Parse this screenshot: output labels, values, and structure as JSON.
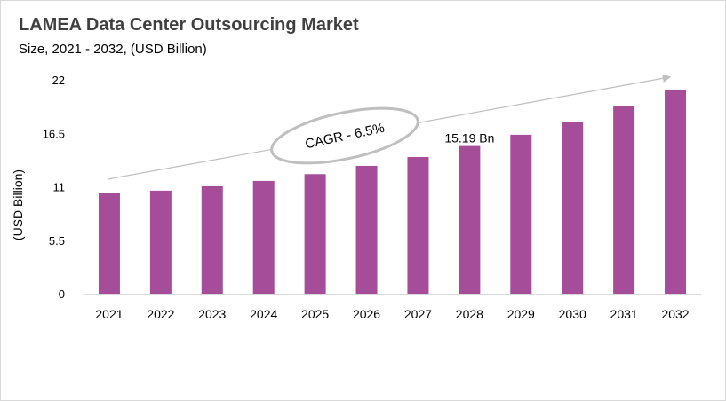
{
  "chart_data": {
    "type": "bar",
    "title": "LAMEA Data Center Outsourcing Market",
    "subtitle": "Size, 2021 - 2032, (USD Billion)",
    "xlabel": "",
    "ylabel": "(USD Billion)",
    "categories": [
      "2021",
      "2022",
      "2023",
      "2024",
      "2025",
      "2026",
      "2027",
      "2028",
      "2029",
      "2030",
      "2031",
      "2032"
    ],
    "values": [
      10.4,
      10.6,
      11.05,
      11.6,
      12.3,
      13.15,
      14.06,
      15.19,
      16.35,
      17.7,
      19.3,
      21.0
    ],
    "ylim": [
      0,
      22
    ],
    "yticks": [
      "0",
      "5.5",
      "11",
      "16.5",
      "22"
    ],
    "grid": false,
    "bar_color": "#A64D9A",
    "annotations": {
      "cagr": "CAGR - 6.5%",
      "data_label": "15.19 Bn",
      "data_label_category": "2028"
    }
  }
}
